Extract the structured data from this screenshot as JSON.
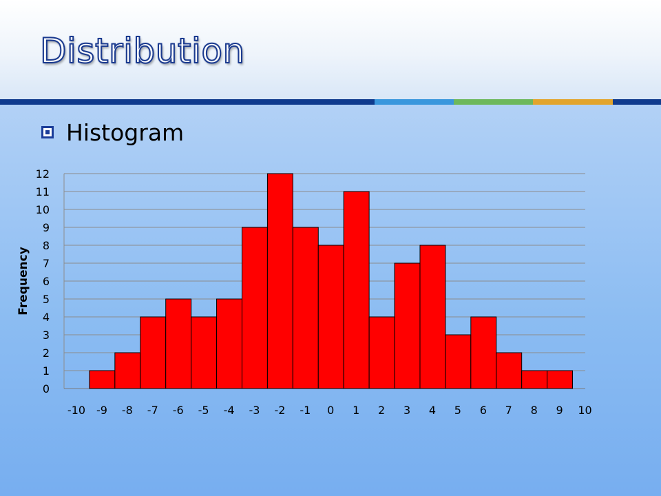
{
  "slide": {
    "title": "Distribution",
    "bullet": "Histogram",
    "accent_colors": [
      "#103b8e",
      "#3a97dd",
      "#6eb85c",
      "#e2a42d",
      "#103b8e"
    ]
  },
  "chart_data": {
    "type": "bar",
    "title": "",
    "xlabel": "",
    "ylabel": "Frequency",
    "x_ticks": [
      "-10",
      "-9",
      "-8",
      "-7",
      "-6",
      "-5",
      "-4",
      "-3",
      "-2",
      "-1",
      "0",
      "1",
      "2",
      "3",
      "4",
      "5",
      "6",
      "7",
      "8",
      "9",
      "10"
    ],
    "y_ticks": [
      "0",
      "1",
      "2",
      "3",
      "4",
      "5",
      "6",
      "7",
      "8",
      "9",
      "10",
      "11",
      "12"
    ],
    "bins": [
      {
        "from": -9,
        "to": -8,
        "value": 1
      },
      {
        "from": -8,
        "to": -7,
        "value": 2
      },
      {
        "from": -7,
        "to": -6,
        "value": 4
      },
      {
        "from": -6,
        "to": -5,
        "value": 5
      },
      {
        "from": -5,
        "to": -4,
        "value": 4
      },
      {
        "from": -4,
        "to": -3,
        "value": 5
      },
      {
        "from": -3,
        "to": -2,
        "value": 9
      },
      {
        "from": -2,
        "to": -1,
        "value": 12
      },
      {
        "from": -1,
        "to": 0,
        "value": 9
      },
      {
        "from": 0,
        "to": 1,
        "value": 8
      },
      {
        "from": 1,
        "to": 2,
        "value": 11
      },
      {
        "from": 2,
        "to": 3,
        "value": 4
      },
      {
        "from": 3,
        "to": 4,
        "value": 7
      },
      {
        "from": 4,
        "to": 5,
        "value": 8
      },
      {
        "from": 5,
        "to": 6,
        "value": 3
      },
      {
        "from": 6,
        "to": 7,
        "value": 4
      },
      {
        "from": 7,
        "to": 8,
        "value": 2
      },
      {
        "from": 8,
        "to": 9,
        "value": 1
      },
      {
        "from": 9,
        "to": 10,
        "value": 1
      }
    ],
    "xlim": [
      -10,
      10.5
    ],
    "ylim": [
      0,
      12
    ],
    "grid": true,
    "bar_color": "#ff0000",
    "legend": "none"
  }
}
